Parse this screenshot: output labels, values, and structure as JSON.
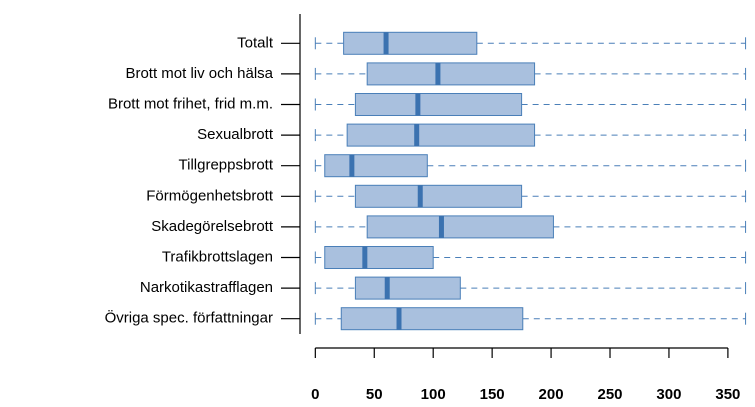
{
  "chart_data": {
    "type": "boxplot",
    "categories": [
      "Totalt",
      "Brott mot liv och hälsa",
      "Brott mot frihet, frid m.m.",
      "Sexualbrott",
      "Tillgreppsbrott",
      "Förmögenhetsbrott",
      "Skadegörelsebrott",
      "Trafikbrottslagen",
      "Narkotikastrafflagen",
      "Övriga spec. författningar"
    ],
    "min": [
      0,
      0,
      0,
      0,
      0,
      0,
      0,
      0,
      0,
      0
    ],
    "q1": [
      24,
      44,
      34,
      27,
      8,
      34,
      44,
      8,
      34,
      22
    ],
    "median": [
      60,
      104,
      87,
      86,
      31,
      89,
      107,
      42,
      61,
      71
    ],
    "q3": [
      137,
      186,
      175,
      186,
      95,
      175,
      202,
      100,
      123,
      176
    ],
    "max": [
      365,
      365,
      365,
      365,
      365,
      365,
      365,
      365,
      365,
      365
    ],
    "xlim": [
      -13,
      373
    ],
    "xticks": [
      0,
      50,
      100,
      150,
      200,
      250,
      300,
      350
    ],
    "box_color": "#a9c0de",
    "line_color": "#4a7fb8",
    "median_color": "#3b72b0"
  }
}
